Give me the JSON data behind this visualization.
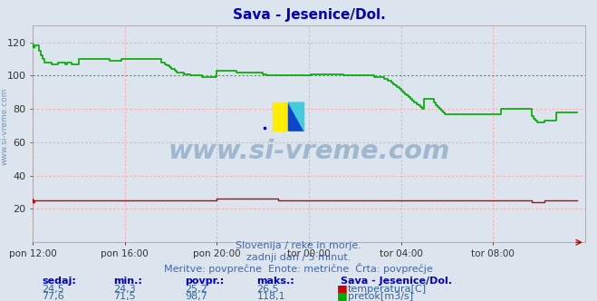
{
  "title": "Sava - Jesenice/Dol.",
  "title_color": "#0000bb",
  "bg_color": "#dce4ee",
  "xlabel": "",
  "ylabel": "",
  "xlim": [
    0,
    288
  ],
  "ylim": [
    0,
    130
  ],
  "ytick_vals": [
    20,
    40,
    60,
    80,
    100,
    120
  ],
  "xtick_labels": [
    "pon 12:00",
    "pon 16:00",
    "pon 20:00",
    "tor 00:00",
    "tor 04:00",
    "tor 08:00"
  ],
  "xtick_positions": [
    0,
    48,
    96,
    144,
    192,
    240
  ],
  "grid_color": "#ffaaaa",
  "grid_green_color": "#00cc00",
  "watermark_line1": "Slovenija / reke in morje.",
  "watermark_line2": "zadnji dan / 5 minut.",
  "watermark_line3": "Meritve: povprečne  Enote: metrične  Črta: povprečje",
  "footer_label1": "sedaj:",
  "footer_label2": "min.:",
  "footer_label3": "povpr.:",
  "footer_label4": "maks.:",
  "footer_label5": "Sava - Jesenice/Dol.",
  "temp_sedaj": "24,5",
  "temp_min": "24,3",
  "temp_povpr": "25,2",
  "temp_maks": "26,5",
  "pretok_sedaj": "77,6",
  "pretok_min": "71,5",
  "pretok_povpr": "98,7",
  "pretok_maks": "118,1",
  "temp_label": "temperatura[C]",
  "pretok_label": "pretok[m3/s]",
  "temp_color": "#cc0000",
  "pretok_color": "#00aa00",
  "watermark_text": "www.si-vreme.com",
  "watermark_color": "#7799bb",
  "left_label": "www.si-vreme.com",
  "flow_data": [
    118,
    118,
    118,
    115,
    112,
    110,
    108,
    108,
    108,
    108,
    107,
    107,
    107,
    108,
    108,
    108,
    108,
    107,
    108,
    108,
    107,
    107,
    107,
    107,
    110,
    110,
    110,
    110,
    110,
    110,
    110,
    110,
    110,
    110,
    110,
    110,
    110,
    110,
    110,
    110,
    109,
    109,
    109,
    109,
    109,
    109,
    110,
    110,
    110,
    110,
    110,
    110,
    110,
    110,
    110,
    110,
    110,
    110,
    110,
    110,
    110,
    110,
    110,
    110,
    110,
    110,
    110,
    108,
    108,
    107,
    106,
    105,
    104,
    104,
    103,
    102,
    102,
    102,
    102,
    101,
    101,
    101,
    100,
    100,
    100,
    100,
    100,
    100,
    99,
    99,
    99,
    99,
    99,
    99,
    99,
    99,
    103,
    103,
    103,
    103,
    103,
    103,
    103,
    103,
    103,
    103,
    102,
    102,
    102,
    102,
    102,
    102,
    102,
    102,
    102,
    102,
    102,
    102,
    102,
    102,
    101,
    101,
    100,
    100,
    100,
    100,
    100,
    100,
    100,
    100,
    100,
    100,
    100,
    100,
    100,
    100,
    100,
    100,
    100,
    100,
    100,
    100,
    100,
    100,
    100,
    101,
    101,
    101,
    101,
    101,
    101,
    101,
    101,
    101,
    101,
    101,
    101,
    101,
    101,
    101,
    101,
    101,
    100,
    100,
    100,
    100,
    100,
    100,
    100,
    100,
    100,
    100,
    100,
    100,
    100,
    100,
    100,
    100,
    99,
    99,
    99,
    99,
    99,
    98,
    98,
    97,
    97,
    96,
    95,
    94,
    93,
    92,
    91,
    90,
    89,
    88,
    87,
    86,
    85,
    84,
    83,
    82,
    81,
    80,
    86,
    86,
    86,
    86,
    86,
    84,
    82,
    81,
    80,
    79,
    78,
    77,
    77,
    77,
    77,
    77,
    77,
    77,
    77,
    77,
    77,
    77,
    77,
    77,
    77,
    77,
    77,
    77,
    77,
    77,
    77,
    77,
    77,
    77,
    77,
    77,
    77,
    77,
    77,
    77,
    80,
    80,
    80,
    80,
    80,
    80,
    80,
    80,
    80,
    80,
    80,
    80,
    80,
    80,
    80,
    80,
    76,
    74,
    73,
    72,
    72,
    72,
    72,
    73,
    73,
    73,
    73,
    73,
    73,
    78,
    78,
    78,
    78,
    78,
    78,
    78,
    78,
    78,
    78,
    78,
    78
  ],
  "temp_data": [
    25,
    25,
    25,
    25,
    25,
    25,
    25,
    25,
    25,
    25,
    25,
    25,
    25,
    25,
    25,
    25,
    25,
    25,
    25,
    25,
    25,
    25,
    25,
    25,
    25,
    25,
    25,
    25,
    25,
    25,
    25,
    25,
    25,
    25,
    25,
    25,
    25,
    25,
    25,
    25,
    25,
    25,
    25,
    25,
    25,
    25,
    25,
    25,
    25,
    25,
    25,
    25,
    25,
    25,
    25,
    25,
    25,
    25,
    25,
    25,
    25,
    25,
    25,
    25,
    25,
    25,
    25,
    25,
    25,
    25,
    25,
    25,
    25,
    25,
    25,
    25,
    25,
    25,
    25,
    25,
    25,
    25,
    25,
    25,
    25,
    25,
    25,
    25,
    25,
    25,
    25,
    25,
    25,
    25,
    25,
    25,
    26,
    26,
    26,
    26,
    26,
    26,
    26,
    26,
    26,
    26,
    26,
    26,
    26,
    26,
    26,
    26,
    26,
    26,
    26,
    26,
    26,
    26,
    26,
    26,
    26,
    26,
    26,
    26,
    26,
    26,
    26,
    26,
    25,
    25,
    25,
    25,
    25,
    25,
    25,
    25,
    25,
    25,
    25,
    25,
    25,
    25,
    25,
    25,
    25,
    25,
    25,
    25,
    25,
    25,
    25,
    25,
    25,
    25,
    25,
    25,
    25,
    25,
    25,
    25,
    25,
    25,
    25,
    25,
    25,
    25,
    25,
    25,
    25,
    25,
    25,
    25,
    25,
    25,
    25,
    25,
    25,
    25,
    25,
    25,
    25,
    25,
    25,
    25,
    25,
    25,
    25,
    25,
    25,
    25,
    25,
    25,
    25,
    25,
    25,
    25,
    25,
    25,
    25,
    25,
    25,
    25,
    25,
    25,
    25,
    25,
    25,
    25,
    25,
    25,
    25,
    25,
    25,
    25,
    25,
    25,
    25,
    25,
    25,
    25,
    25,
    25,
    25,
    25,
    25,
    25,
    25,
    25,
    25,
    25,
    25,
    25,
    25,
    25,
    25,
    25,
    25,
    25,
    25,
    25,
    25,
    25,
    25,
    25,
    25,
    25,
    25,
    25,
    25,
    25,
    25,
    25,
    25,
    25,
    25,
    25,
    25,
    25,
    25,
    25,
    24,
    24,
    24,
    24,
    24,
    24,
    24,
    25,
    25,
    25,
    25,
    25,
    25,
    25,
    25,
    25,
    25,
    25,
    25,
    25,
    25,
    25,
    25,
    25,
    25
  ]
}
